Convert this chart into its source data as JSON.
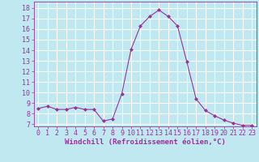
{
  "x": [
    0,
    1,
    2,
    3,
    4,
    5,
    6,
    7,
    8,
    9,
    10,
    11,
    12,
    13,
    14,
    15,
    16,
    17,
    18,
    19,
    20,
    21,
    22,
    23
  ],
  "y": [
    8.5,
    8.7,
    8.4,
    8.4,
    8.6,
    8.4,
    8.4,
    7.3,
    7.5,
    9.9,
    14.1,
    16.3,
    17.2,
    17.8,
    17.2,
    16.3,
    12.9,
    9.4,
    8.3,
    7.8,
    7.4,
    7.1,
    6.9,
    6.9
  ],
  "line_color": "#993399",
  "marker": "D",
  "marker_size": 2,
  "bg_color": "#c0e8f0",
  "grid_color": "#ffffff",
  "xlabel": "Windchill (Refroidissement éolien,°C)",
  "xlabel_fontsize": 6.5,
  "tick_fontsize": 6,
  "ylim": [
    6.8,
    18.6
  ],
  "xlim": [
    -0.5,
    23.5
  ],
  "yticks": [
    7,
    8,
    9,
    10,
    11,
    12,
    13,
    14,
    15,
    16,
    17,
    18
  ],
  "xticks": [
    0,
    1,
    2,
    3,
    4,
    5,
    6,
    7,
    8,
    9,
    10,
    11,
    12,
    13,
    14,
    15,
    16,
    17,
    18,
    19,
    20,
    21,
    22,
    23
  ]
}
